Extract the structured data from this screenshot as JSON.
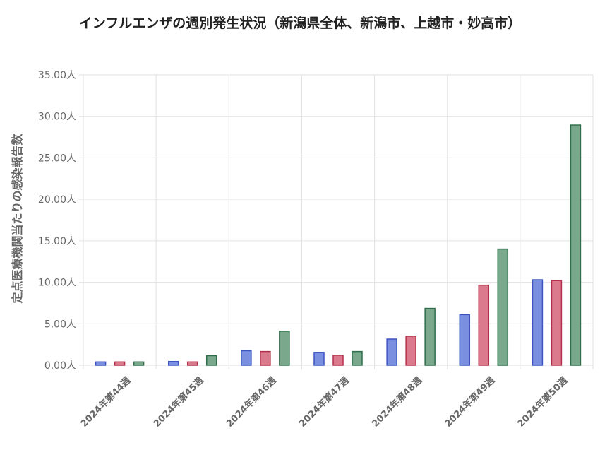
{
  "chart_data": {
    "type": "bar",
    "title": "インフルエンザの週別発生状況（新潟県全体、新潟市、上越市・妙高市）",
    "ylabel": "定点医療機関当たりの感染報告数",
    "y_unit": "人",
    "ylim": [
      0,
      35
    ],
    "ytick_step": 5,
    "grid": true,
    "categories": [
      "2024年第44週",
      "2024年第45週",
      "2024年第46週",
      "2024年第47週",
      "2024年第48週",
      "2024年第49週",
      "2024年第50週"
    ],
    "series": [
      {
        "values": [
          0.4,
          0.45,
          1.75,
          1.55,
          3.15,
          6.1,
          10.3
        ],
        "color": "#7b8fe0",
        "stroke": "#3b55c0"
      },
      {
        "values": [
          0.4,
          0.4,
          1.65,
          1.2,
          3.5,
          9.65,
          10.2
        ],
        "color": "#dc7a8d",
        "stroke": "#b3304c"
      },
      {
        "values": [
          0.4,
          1.15,
          4.1,
          1.65,
          6.85,
          14.0,
          28.95
        ],
        "color": "#7aa88c",
        "stroke": "#2f6e4a"
      }
    ]
  }
}
